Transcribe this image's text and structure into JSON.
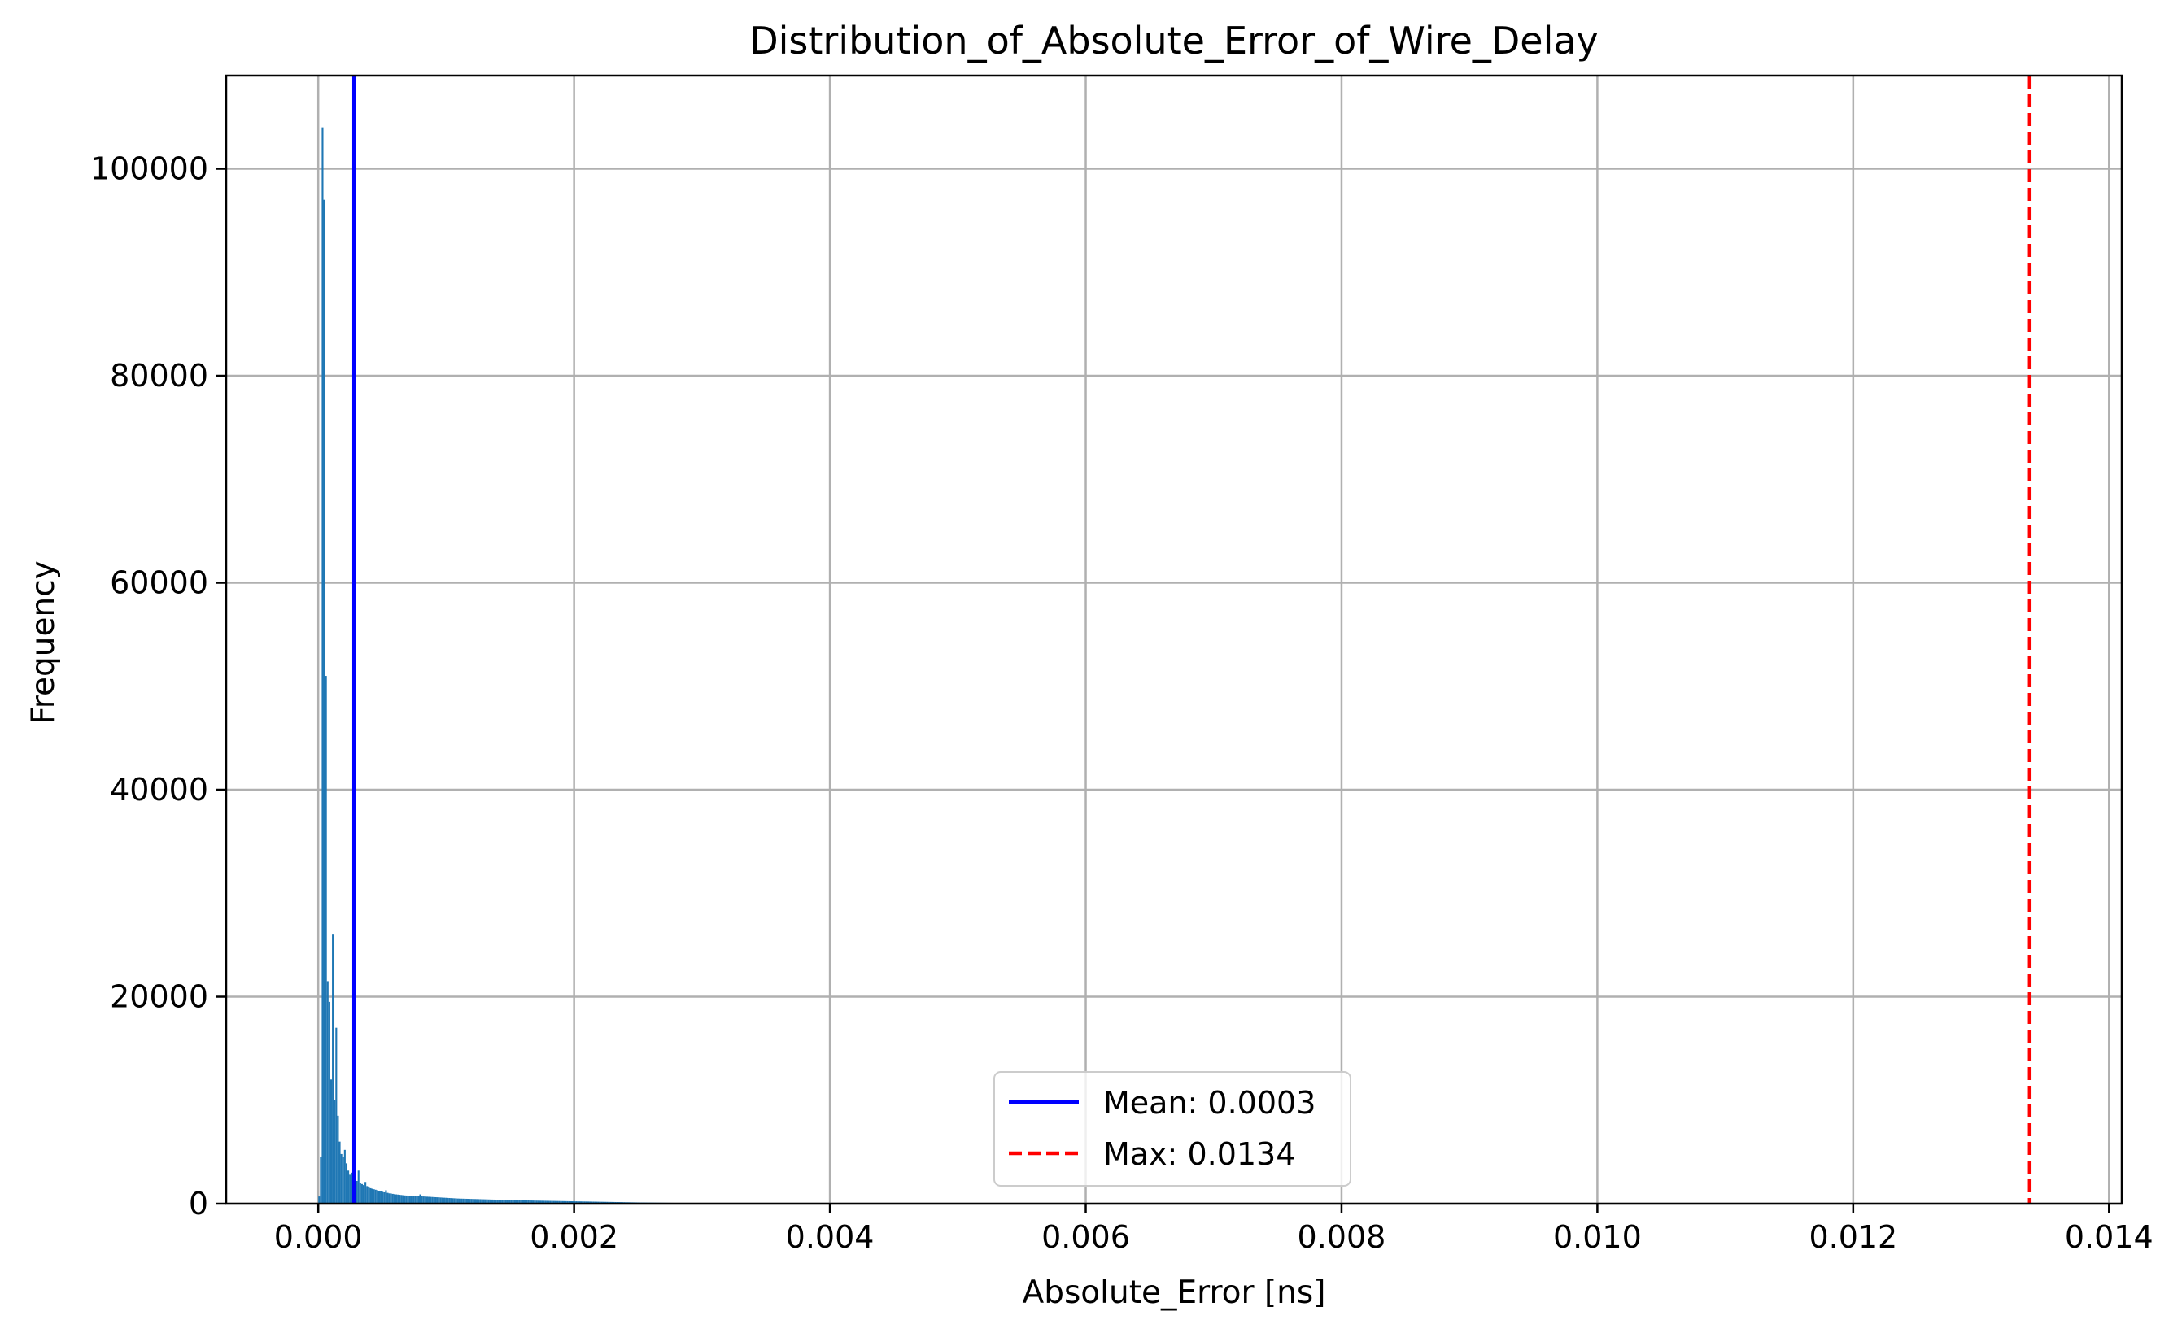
{
  "chart_data": {
    "type": "bar",
    "title": "Distribution_of_Absolute_Error_of_Wire_Delay",
    "xlabel": "Absolute_Error [ns]",
    "ylabel": "Frequency",
    "xlim": [
      -0.00072,
      0.0141
    ],
    "ylim": [
      0,
      109000
    ],
    "xticks": [
      0.0,
      0.002,
      0.004,
      0.006,
      0.008,
      0.01,
      0.012,
      0.014
    ],
    "xtick_labels": [
      "0.000",
      "0.002",
      "0.004",
      "0.006",
      "0.008",
      "0.010",
      "0.012",
      "0.014"
    ],
    "yticks": [
      0,
      20000,
      40000,
      60000,
      80000,
      100000
    ],
    "ytick_labels": [
      "0",
      "20000",
      "40000",
      "60000",
      "80000",
      "100000"
    ],
    "grid": true,
    "bar_color": "#1f77b4",
    "histogram": {
      "bin_width": 1.34e-05,
      "bin_start": 0.0,
      "counts": [
        700,
        4500,
        104000,
        97000,
        51000,
        21500,
        19500,
        12000,
        26000,
        10000,
        17000,
        8500,
        6000,
        4800,
        4500,
        5200,
        3900,
        3200,
        2800,
        3000,
        2600,
        2400,
        2200,
        3200,
        2000,
        1900,
        1800,
        2100,
        1700,
        1600,
        1500,
        1450,
        1400,
        1350,
        1300,
        1250,
        1200,
        1150,
        1100,
        1300,
        1050,
        1000,
        980,
        950,
        920,
        900,
        880,
        860,
        840,
        820,
        800,
        790,
        780,
        770,
        760,
        750,
        740,
        730,
        720,
        900,
        710,
        700,
        690,
        680,
        670,
        660,
        650,
        640,
        630,
        620,
        610,
        600,
        590,
        580,
        570,
        560,
        550,
        540,
        530,
        520,
        510,
        500,
        495,
        490,
        485,
        480,
        475,
        470,
        465,
        460,
        455,
        450,
        445,
        440,
        435,
        430,
        425,
        420,
        415,
        410,
        405,
        400,
        396,
        392,
        388,
        384,
        380,
        376,
        372,
        368,
        364,
        360,
        356,
        352,
        348,
        344,
        340,
        336,
        332,
        328,
        324,
        320,
        316,
        312,
        308,
        304,
        300,
        297,
        294,
        291,
        288,
        285,
        282,
        279,
        276,
        273,
        270,
        267,
        264,
        261,
        258,
        255,
        252,
        249,
        246,
        243,
        240,
        237,
        234,
        231,
        228,
        225,
        222,
        219,
        216,
        213,
        210,
        207,
        204,
        201,
        198,
        195,
        192,
        189,
        186,
        183,
        180,
        177,
        174,
        171,
        168,
        165,
        162,
        159,
        156,
        153,
        150,
        147,
        144,
        141,
        138,
        135,
        132,
        129,
        126,
        123,
        120,
        118,
        116,
        114,
        112,
        110,
        108,
        106,
        104,
        102,
        100,
        98,
        96,
        94,
        92,
        90,
        88,
        86,
        84,
        82,
        80,
        78,
        76,
        74,
        72,
        70,
        68,
        66,
        64,
        62,
        60,
        58,
        56,
        54,
        52,
        50,
        48,
        46,
        44,
        42,
        40,
        38,
        36,
        34,
        32,
        30,
        28,
        26,
        24,
        22,
        20,
        18,
        16,
        14,
        12,
        10
      ]
    },
    "reference_lines": [
      {
        "name": "Mean: 0.0003",
        "x": 0.00028,
        "color": "#0000ff",
        "style": "solid"
      },
      {
        "name": "Max: 0.0134",
        "x": 0.01338,
        "color": "#ff0000",
        "style": "dashed"
      }
    ],
    "legend": {
      "placement": "bottom-center",
      "entries": [
        "Mean: 0.0003",
        "Max: 0.0134"
      ]
    }
  }
}
